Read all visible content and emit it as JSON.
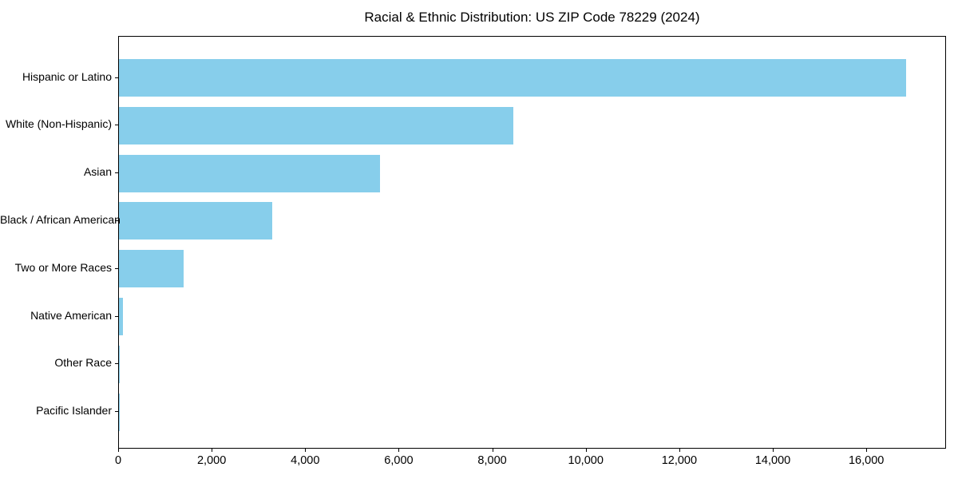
{
  "chart_data": {
    "type": "bar",
    "orientation": "horizontal",
    "title": "Racial & Ethnic Distribution: US ZIP Code 78229 (2024)",
    "categories": [
      "Hispanic or Latino",
      "White (Non-Hispanic)",
      "Asian",
      "Black / African American",
      "Two or More Races",
      "Native American",
      "Other Race",
      "Pacific Islander"
    ],
    "values": [
      16840,
      8435,
      5580,
      3270,
      1380,
      90,
      20,
      5
    ],
    "xlabel": "",
    "ylabel": "",
    "xlim": [
      0,
      17670
    ],
    "xticks": [
      0,
      2000,
      4000,
      6000,
      8000,
      10000,
      12000,
      14000,
      16000
    ],
    "xtick_labels": [
      "0",
      "2,000",
      "4,000",
      "6,000",
      "8,000",
      "10,000",
      "12,000",
      "14,000",
      "16,000"
    ],
    "bar_color": "#87CEEB",
    "axis_color": "#000000",
    "background_color": "#FFFFFF",
    "grid": false,
    "legend": null,
    "category_order": "largest-at-top"
  }
}
